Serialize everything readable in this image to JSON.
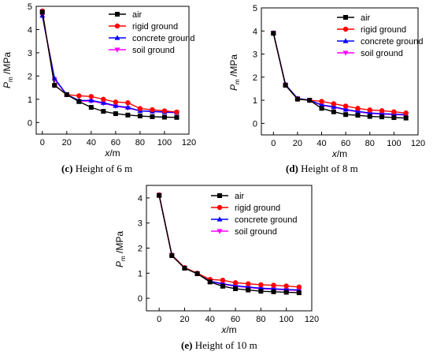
{
  "colors": {
    "air": "#000000",
    "rigid ground": "#ff0000",
    "concrete ground": "#0000ff",
    "soil ground": "#ff00ff"
  },
  "markers": {
    "air": "square",
    "rigid ground": "circle",
    "concrete ground": "triangle-up",
    "soil ground": "triangle-down"
  },
  "chart_data": [
    {
      "type": "line",
      "caption_letter": "(c)",
      "caption_text": " Height of 6 m",
      "xlabel": "x/m",
      "ylabel": "Pm /MPa",
      "xlim": [
        -5,
        120
      ],
      "ylim": [
        -0.5,
        5
      ],
      "xticks": [
        0,
        20,
        40,
        60,
        80,
        100,
        120
      ],
      "yticks": [
        0,
        1,
        2,
        3,
        4,
        5
      ],
      "legend_position": "top-right",
      "x": [
        0,
        10,
        20,
        30,
        40,
        50,
        60,
        70,
        80,
        90,
        100,
        110
      ],
      "series": [
        {
          "name": "air",
          "values": [
            4.75,
            1.6,
            1.2,
            0.9,
            0.65,
            0.48,
            0.38,
            0.32,
            0.28,
            0.25,
            0.23,
            0.22
          ]
        },
        {
          "name": "rigid ground",
          "values": [
            4.8,
            1.6,
            1.2,
            1.15,
            1.12,
            1.0,
            0.88,
            0.85,
            0.6,
            0.55,
            0.5,
            0.45
          ]
        },
        {
          "name": "concrete ground",
          "values": [
            4.6,
            1.9,
            1.2,
            0.95,
            0.95,
            0.85,
            0.72,
            0.65,
            0.5,
            0.48,
            0.45,
            0.43
          ]
        },
        {
          "name": "soil ground",
          "values": [
            4.6,
            1.85,
            1.2,
            0.92,
            0.92,
            0.82,
            0.7,
            0.62,
            0.5,
            0.47,
            0.44,
            0.42
          ]
        }
      ]
    },
    {
      "type": "line",
      "caption_letter": "(d)",
      "caption_text": " Height of 8 m",
      "xlabel": "x/m",
      "ylabel": "Pm /MPa",
      "xlim": [
        -10,
        120
      ],
      "ylim": [
        -0.5,
        5
      ],
      "xticks": [
        0,
        20,
        40,
        60,
        80,
        100,
        120
      ],
      "yticks": [
        0,
        1,
        2,
        3,
        4,
        5
      ],
      "legend_position": "top-right",
      "x": [
        0,
        10,
        20,
        30,
        40,
        50,
        60,
        70,
        80,
        90,
        100,
        110
      ],
      "series": [
        {
          "name": "air",
          "values": [
            3.9,
            1.65,
            1.05,
            1.0,
            0.65,
            0.5,
            0.38,
            0.35,
            0.3,
            0.28,
            0.25,
            0.23
          ]
        },
        {
          "name": "rigid ground",
          "values": [
            3.9,
            1.65,
            1.05,
            1.0,
            0.95,
            0.85,
            0.75,
            0.65,
            0.58,
            0.55,
            0.5,
            0.45
          ]
        },
        {
          "name": "concrete ground",
          "values": [
            3.92,
            1.68,
            1.08,
            1.0,
            0.8,
            0.72,
            0.6,
            0.52,
            0.45,
            0.42,
            0.4,
            0.38
          ]
        },
        {
          "name": "soil ground",
          "values": [
            3.92,
            1.68,
            1.08,
            1.0,
            0.78,
            0.7,
            0.58,
            0.5,
            0.43,
            0.4,
            0.38,
            0.36
          ]
        }
      ]
    },
    {
      "type": "line",
      "caption_letter": "(e)",
      "caption_text": " Height of 10 m",
      "xlabel": "x/m",
      "ylabel": "Pm /MPa",
      "xlim": [
        -10,
        120
      ],
      "ylim": [
        -0.5,
        4.5
      ],
      "xticks": [
        0,
        20,
        40,
        60,
        80,
        100,
        120
      ],
      "yticks": [
        0,
        1,
        2,
        3,
        4
      ],
      "legend_position": "top-right",
      "x": [
        0,
        10,
        20,
        30,
        40,
        50,
        60,
        70,
        80,
        90,
        100,
        110
      ],
      "series": [
        {
          "name": "air",
          "values": [
            4.1,
            1.7,
            1.2,
            0.98,
            0.65,
            0.48,
            0.38,
            0.33,
            0.28,
            0.26,
            0.24,
            0.22
          ]
        },
        {
          "name": "rigid ground",
          "values": [
            4.12,
            1.72,
            1.22,
            1.0,
            0.75,
            0.72,
            0.62,
            0.58,
            0.54,
            0.52,
            0.49,
            0.45
          ]
        },
        {
          "name": "concrete ground",
          "values": [
            4.12,
            1.72,
            1.22,
            0.98,
            0.68,
            0.58,
            0.5,
            0.45,
            0.4,
            0.38,
            0.35,
            0.33
          ]
        },
        {
          "name": "soil ground",
          "values": [
            4.12,
            1.72,
            1.22,
            0.98,
            0.68,
            0.56,
            0.48,
            0.43,
            0.38,
            0.36,
            0.33,
            0.31
          ]
        }
      ]
    }
  ]
}
